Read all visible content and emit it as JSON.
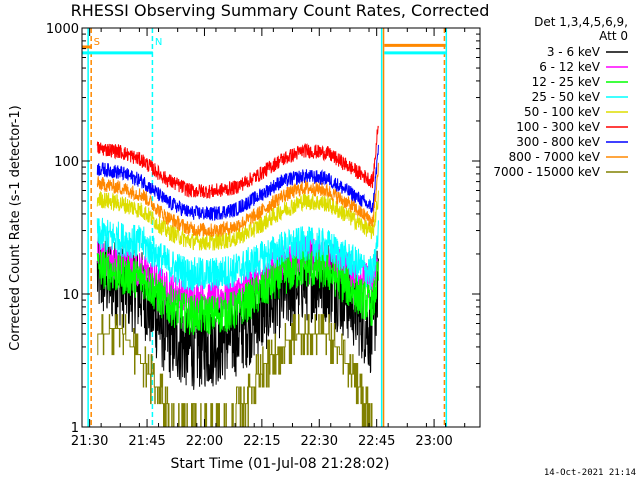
{
  "chart_data": {
    "type": "line",
    "title": "RHESSI Observing Summary Count Rates, Corrected",
    "xlabel": "Start Time (01-Jul-08 21:28:02)",
    "ylabel": "Corrected Count Rate (s-1 detector-1)",
    "y_scale": "log",
    "ylim": [
      1,
      1000
    ],
    "xlim": [
      "21:28",
      "23:12"
    ],
    "x_ticks": [
      "21:30",
      "21:45",
      "22:00",
      "22:15",
      "22:30",
      "22:45",
      "23:00"
    ],
    "y_ticks": [
      "1",
      "10",
      "100",
      "1000"
    ],
    "legend": {
      "header": [
        "Det 1,3,4,5,6,9,",
        "Att 0"
      ],
      "placement": "right, outside plot"
    },
    "footer_date": "14-Oct-2021 21:14",
    "annotations": [
      {
        "label": "S",
        "time": "21:30"
      },
      {
        "label": "N",
        "time": "21:46"
      }
    ],
    "event_lines": [
      {
        "time": "21:29.6",
        "color": "#00ffff"
      },
      {
        "time": "21:30.4",
        "color": "#ff8800",
        "style": "dashed"
      },
      {
        "time": "21:46.4",
        "color": "#00ffff",
        "style": "dashed"
      },
      {
        "time": "22:46.3",
        "color": "#00ffff"
      },
      {
        "time": "22:46.8",
        "color": "#ff8800"
      },
      {
        "time": "23:02.7",
        "color": "#ff8800",
        "style": "dashed"
      },
      {
        "time": "23:03.2",
        "color": "#00ffff"
      }
    ],
    "bars": [
      {
        "name": "S (orange)",
        "start": "21:28",
        "end": "21:30.5",
        "y": 720,
        "color": "#ff8800"
      },
      {
        "name": "N (cyan)",
        "start": "21:28",
        "end": "21:46.5",
        "y": 650,
        "color": "#00ffff"
      },
      {
        "name": "orange",
        "start": "22:47",
        "end": "23:03",
        "y": 740,
        "color": "#ff8800"
      },
      {
        "name": "cyan",
        "start": "22:47",
        "end": "23:03",
        "y": 650,
        "color": "#00ffff"
      }
    ],
    "series": [
      {
        "name": "3 - 6 keV",
        "color": "#000000",
        "noise": 0.15,
        "points": [
          [
            "21:32",
            14
          ],
          [
            "21:38",
            12
          ],
          [
            "21:44",
            10
          ],
          [
            "21:50",
            5
          ],
          [
            "21:56",
            4
          ],
          [
            "22:02",
            4.2
          ],
          [
            "22:08",
            5
          ],
          [
            "22:14",
            7
          ],
          [
            "22:20",
            10
          ],
          [
            "22:26",
            13
          ],
          [
            "22:32",
            13
          ],
          [
            "22:38",
            9
          ],
          [
            "22:44",
            5
          ],
          [
            "22:45.5",
            14
          ]
        ]
      },
      {
        "name": "6 - 12 keV",
        "color": "#ff00ff",
        "noise": 0.06,
        "points": [
          [
            "21:32",
            19
          ],
          [
            "21:38",
            17
          ],
          [
            "21:44",
            15
          ],
          [
            "21:50",
            11
          ],
          [
            "21:56",
            9.5
          ],
          [
            "22:02",
            9.5
          ],
          [
            "22:08",
            10
          ],
          [
            "22:14",
            13
          ],
          [
            "22:20",
            17
          ],
          [
            "22:26",
            20
          ],
          [
            "22:32",
            19
          ],
          [
            "22:38",
            15
          ],
          [
            "22:44",
            12
          ],
          [
            "22:45.5",
            20
          ]
        ]
      },
      {
        "name": "12 - 25 keV",
        "color": "#00ff00",
        "noise": 0.07,
        "points": [
          [
            "21:32",
            16
          ],
          [
            "21:38",
            14
          ],
          [
            "21:44",
            13
          ],
          [
            "21:50",
            8.5
          ],
          [
            "21:56",
            7
          ],
          [
            "22:02",
            7
          ],
          [
            "22:08",
            7.5
          ],
          [
            "22:14",
            10
          ],
          [
            "22:20",
            13.5
          ],
          [
            "22:26",
            16
          ],
          [
            "22:32",
            15
          ],
          [
            "22:38",
            11
          ],
          [
            "22:44",
            8
          ],
          [
            "22:45.5",
            15
          ]
        ]
      },
      {
        "name": "25 - 50 keV",
        "color": "#00ffff",
        "noise": 0.06,
        "points": [
          [
            "21:32",
            28
          ],
          [
            "21:38",
            26
          ],
          [
            "21:44",
            24
          ],
          [
            "21:50",
            17
          ],
          [
            "21:56",
            14
          ],
          [
            "22:02",
            14
          ],
          [
            "22:08",
            15
          ],
          [
            "22:14",
            18
          ],
          [
            "22:20",
            22
          ],
          [
            "22:26",
            24
          ],
          [
            "22:32",
            23
          ],
          [
            "22:38",
            18
          ],
          [
            "22:44",
            14
          ],
          [
            "22:45.5",
            28
          ]
        ]
      },
      {
        "name": "50 - 100 keV",
        "color": "#dddd00",
        "noise": 0.03,
        "points": [
          [
            "21:32",
            52
          ],
          [
            "21:38",
            48
          ],
          [
            "21:44",
            42
          ],
          [
            "21:50",
            30
          ],
          [
            "21:56",
            25
          ],
          [
            "22:02",
            24.5
          ],
          [
            "22:08",
            26
          ],
          [
            "22:14",
            32
          ],
          [
            "22:20",
            42
          ],
          [
            "22:26",
            50
          ],
          [
            "22:32",
            48
          ],
          [
            "22:38",
            38
          ],
          [
            "22:44",
            29
          ],
          [
            "22:45.5",
            55
          ]
        ]
      },
      {
        "name": "100 - 300 keV",
        "color": "#ff0000",
        "noise": 0.025,
        "points": [
          [
            "21:32",
            125
          ],
          [
            "21:38",
            118
          ],
          [
            "21:44",
            100
          ],
          [
            "21:50",
            73
          ],
          [
            "21:56",
            60
          ],
          [
            "22:02",
            59
          ],
          [
            "22:08",
            63
          ],
          [
            "22:14",
            78
          ],
          [
            "22:20",
            102
          ],
          [
            "22:26",
            120
          ],
          [
            "22:32",
            115
          ],
          [
            "22:38",
            90
          ],
          [
            "22:44",
            70
          ],
          [
            "22:45.5",
            200
          ]
        ]
      },
      {
        "name": "300 - 800 keV",
        "color": "#0000ff",
        "noise": 0.025,
        "points": [
          [
            "21:32",
            88
          ],
          [
            "21:38",
            82
          ],
          [
            "21:44",
            70
          ],
          [
            "21:50",
            50
          ],
          [
            "21:56",
            41
          ],
          [
            "22:02",
            40
          ],
          [
            "22:08",
            43
          ],
          [
            "22:14",
            54
          ],
          [
            "22:20",
            70
          ],
          [
            "22:26",
            77
          ],
          [
            "22:32",
            74
          ],
          [
            "22:38",
            58
          ],
          [
            "22:44",
            44
          ],
          [
            "22:45.5",
            130
          ]
        ]
      },
      {
        "name": "800 - 7000 keV",
        "color": "#ff8800",
        "noise": 0.025,
        "points": [
          [
            "21:32",
            68
          ],
          [
            "21:38",
            63
          ],
          [
            "21:44",
            55
          ],
          [
            "21:50",
            38
          ],
          [
            "21:56",
            31
          ],
          [
            "22:02",
            30
          ],
          [
            "22:08",
            32
          ],
          [
            "22:14",
            40
          ],
          [
            "22:20",
            54
          ],
          [
            "22:26",
            63
          ],
          [
            "22:32",
            60
          ],
          [
            "22:38",
            47
          ],
          [
            "22:44",
            35
          ],
          [
            "22:45.5",
            90
          ]
        ]
      },
      {
        "name": "7000 - 15000 keV",
        "color": "#808000",
        "noise": 0.0,
        "step": true,
        "points": [
          [
            "21:32",
            5
          ],
          [
            "21:38",
            5.5
          ],
          [
            "21:41",
            4
          ],
          [
            "21:44",
            3
          ],
          [
            "21:48",
            2
          ],
          [
            "21:52",
            1
          ],
          [
            "22:06",
            1
          ],
          [
            "22:10",
            1.5
          ],
          [
            "22:14",
            2.5
          ],
          [
            "22:18",
            3.5
          ],
          [
            "22:22",
            4.5
          ],
          [
            "22:26",
            5
          ],
          [
            "22:32",
            5
          ],
          [
            "22:36",
            3.5
          ],
          [
            "22:40",
            2
          ],
          [
            "22:44",
            1
          ]
        ]
      }
    ]
  }
}
